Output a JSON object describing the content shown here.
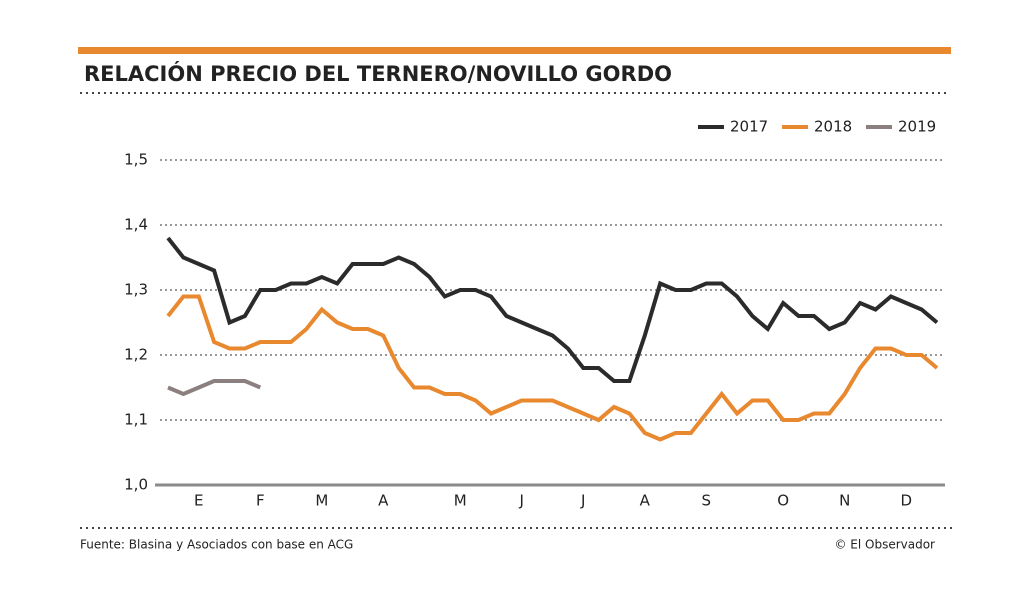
{
  "chart_data": {
    "type": "line",
    "title": "RELACIÓN PRECIO DEL TERNERO/NOVILLO GORDO",
    "source": "Fuente: Blasina y Asociados con base en ACG",
    "credit": "© El Observador",
    "categories": [
      null,
      null,
      "E",
      null,
      null,
      null,
      "F",
      null,
      null,
      null,
      "M",
      null,
      null,
      null,
      "A",
      null,
      null,
      null,
      null,
      "M",
      null,
      null,
      null,
      "J",
      null,
      null,
      null,
      "J",
      null,
      null,
      null,
      "A",
      null,
      null,
      null,
      "S",
      null,
      null,
      null,
      null,
      "O",
      null,
      null,
      null,
      "N",
      null,
      null,
      null,
      "D",
      null,
      null
    ],
    "series": [
      {
        "name": "2017",
        "color": "#2b2b2b",
        "values": [
          1.38,
          1.35,
          1.34,
          1.33,
          1.25,
          1.26,
          1.3,
          1.3,
          1.31,
          1.31,
          1.32,
          1.31,
          1.34,
          1.34,
          1.34,
          1.35,
          1.34,
          1.32,
          1.29,
          1.3,
          1.3,
          1.29,
          1.26,
          1.25,
          1.24,
          1.23,
          1.21,
          1.18,
          1.18,
          1.16,
          1.16,
          1.23,
          1.31,
          1.3,
          1.3,
          1.31,
          1.31,
          1.29,
          1.26,
          1.24,
          1.28,
          1.26,
          1.26,
          1.24,
          1.25,
          1.28,
          1.27,
          1.29,
          1.28,
          1.27,
          1.25
        ]
      },
      {
        "name": "2018",
        "color": "#e8892f",
        "values": [
          1.26,
          1.29,
          1.29,
          1.22,
          1.21,
          1.21,
          1.22,
          1.22,
          1.22,
          1.24,
          1.27,
          1.25,
          1.24,
          1.24,
          1.23,
          1.18,
          1.15,
          1.15,
          1.14,
          1.14,
          1.13,
          1.11,
          1.12,
          1.13,
          1.13,
          1.13,
          1.12,
          1.11,
          1.1,
          1.12,
          1.11,
          1.08,
          1.07,
          1.08,
          1.08,
          1.11,
          1.14,
          1.11,
          1.13,
          1.13,
          1.1,
          1.1,
          1.11,
          1.11,
          1.14,
          1.18,
          1.21,
          1.21,
          1.2,
          1.2,
          1.18
        ]
      },
      {
        "name": "2019",
        "color": "#8c7f7f",
        "values": [
          1.15,
          1.14,
          1.15,
          1.16,
          1.16,
          1.16,
          1.15,
          null,
          null,
          null,
          null,
          null,
          null,
          null,
          null,
          null,
          null,
          null,
          null,
          null,
          null,
          null,
          null,
          null,
          null,
          null,
          null,
          null,
          null,
          null,
          null,
          null,
          null,
          null,
          null,
          null,
          null,
          null,
          null,
          null,
          null,
          null,
          null,
          null,
          null,
          null,
          null,
          null,
          null,
          null,
          null
        ]
      }
    ],
    "ylim": [
      1.0,
      1.5
    ],
    "yticks": [
      {
        "value": 1.0,
        "label": "1,0"
      },
      {
        "value": 1.1,
        "label": "1,1"
      },
      {
        "value": 1.2,
        "label": "1,2"
      },
      {
        "value": 1.3,
        "label": "1,3"
      },
      {
        "value": 1.4,
        "label": "1,4"
      },
      {
        "value": 1.5,
        "label": "1,5"
      }
    ],
    "grid": true,
    "legend": "top-right"
  }
}
